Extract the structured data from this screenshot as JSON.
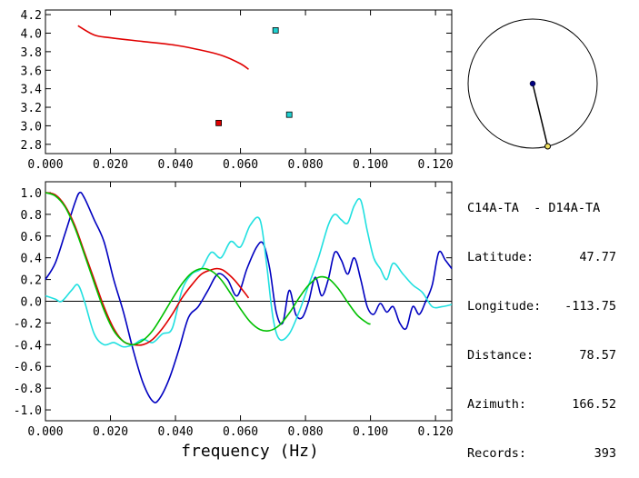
{
  "chart_data": [
    {
      "type": "line",
      "xlim": [
        0.0,
        0.125
      ],
      "ylim": [
        2.7,
        4.25
      ],
      "xticks": [
        0.0,
        0.02,
        0.04,
        0.06,
        0.08,
        0.1,
        0.12
      ],
      "xtick_labels": [
        "0.000",
        "0.020",
        "0.040",
        "0.060",
        "0.080",
        "0.100",
        "0.120"
      ],
      "yticks": [
        2.8,
        3.0,
        3.2,
        3.4,
        3.6,
        3.8,
        4.0,
        4.2
      ],
      "ytick_labels": [
        "2.8",
        "3.0",
        "3.2",
        "3.4",
        "3.6",
        "3.8",
        "4.0",
        "4.2"
      ],
      "series": [
        {
          "color": "#e00000",
          "kind": "line",
          "x": [
            0.01,
            0.015,
            0.02,
            0.03,
            0.04,
            0.05,
            0.055,
            0.06,
            0.0625
          ],
          "y": [
            4.08,
            3.98,
            3.95,
            3.91,
            3.87,
            3.8,
            3.75,
            3.67,
            3.61
          ]
        },
        {
          "color": "#e00000",
          "kind": "marker",
          "x": [
            0.0533
          ],
          "y": [
            3.03
          ]
        },
        {
          "color": "#20d0d0",
          "kind": "marker",
          "x": [
            0.0708,
            0.075
          ],
          "y": [
            4.03,
            3.12
          ]
        }
      ]
    },
    {
      "type": "line",
      "xlim": [
        0.0,
        0.125
      ],
      "ylim": [
        -1.1,
        1.1
      ],
      "xticks": [
        0.0,
        0.02,
        0.04,
        0.06,
        0.08,
        0.1,
        0.12
      ],
      "xtick_labels": [
        "0.000",
        "0.020",
        "0.040",
        "0.060",
        "0.080",
        "0.100",
        "0.120"
      ],
      "yticks": [
        -1.0,
        -0.8,
        -0.6,
        -0.4,
        -0.2,
        0.0,
        0.2,
        0.4,
        0.6,
        0.8,
        1.0
      ],
      "ytick_labels": [
        "-1.0",
        "-0.8",
        "-0.6",
        "-0.4",
        "-0.2",
        "0.0",
        "0.2",
        "0.4",
        "0.6",
        "0.8",
        "1.0"
      ],
      "xlabel": "frequency (Hz)",
      "zero_line": true,
      "series": [
        {
          "color": "#0000c0",
          "x": [
            0.0,
            0.003,
            0.006,
            0.009,
            0.0105,
            0.012,
            0.015,
            0.018,
            0.021,
            0.024,
            0.027,
            0.03,
            0.033,
            0.035,
            0.038,
            0.041,
            0.044,
            0.047,
            0.05,
            0.053,
            0.056,
            0.059,
            0.062,
            0.065,
            0.067,
            0.069,
            0.071,
            0.073,
            0.075,
            0.077,
            0.079,
            0.081,
            0.083,
            0.085,
            0.087,
            0.089,
            0.091,
            0.093,
            0.095,
            0.097,
            0.099,
            0.101,
            0.103,
            0.105,
            0.107,
            0.109,
            0.111,
            0.113,
            0.115,
            0.117,
            0.119,
            0.121,
            0.123,
            0.125
          ],
          "y": [
            0.2,
            0.35,
            0.62,
            0.9,
            1.0,
            0.95,
            0.75,
            0.55,
            0.2,
            -0.1,
            -0.45,
            -0.75,
            -0.92,
            -0.9,
            -0.72,
            -0.45,
            -0.15,
            -0.05,
            0.1,
            0.25,
            0.2,
            0.05,
            0.3,
            0.5,
            0.53,
            0.3,
            -0.1,
            -0.2,
            0.1,
            -0.12,
            -0.15,
            0.0,
            0.22,
            0.05,
            0.2,
            0.45,
            0.38,
            0.25,
            0.4,
            0.2,
            -0.05,
            -0.12,
            -0.02,
            -0.1,
            -0.05,
            -0.2,
            -0.25,
            -0.05,
            -0.12,
            0.0,
            0.15,
            0.45,
            0.38,
            0.3
          ]
        },
        {
          "color": "#20e0e0",
          "x": [
            0.0,
            0.003,
            0.005,
            0.008,
            0.01,
            0.012,
            0.015,
            0.018,
            0.021,
            0.024,
            0.027,
            0.03,
            0.033,
            0.036,
            0.039,
            0.042,
            0.045,
            0.048,
            0.051,
            0.054,
            0.057,
            0.06,
            0.063,
            0.066,
            0.068,
            0.07,
            0.072,
            0.075,
            0.078,
            0.081,
            0.084,
            0.087,
            0.089,
            0.091,
            0.093,
            0.095,
            0.097,
            0.099,
            0.101,
            0.103,
            0.105,
            0.107,
            0.11,
            0.113,
            0.116,
            0.119,
            0.122,
            0.125
          ],
          "y": [
            0.05,
            0.02,
            0.0,
            0.1,
            0.15,
            0.0,
            -0.3,
            -0.4,
            -0.38,
            -0.42,
            -0.4,
            -0.35,
            -0.38,
            -0.3,
            -0.25,
            0.1,
            0.25,
            0.3,
            0.45,
            0.4,
            0.55,
            0.5,
            0.7,
            0.75,
            0.35,
            -0.15,
            -0.35,
            -0.3,
            -0.1,
            0.15,
            0.4,
            0.7,
            0.8,
            0.75,
            0.72,
            0.88,
            0.93,
            0.65,
            0.4,
            0.3,
            0.2,
            0.35,
            0.25,
            0.15,
            0.08,
            -0.05,
            -0.05,
            -0.03
          ]
        },
        {
          "color": "#e00000",
          "x": [
            0.0,
            0.003,
            0.006,
            0.009,
            0.012,
            0.015,
            0.018,
            0.021,
            0.024,
            0.027,
            0.03,
            0.033,
            0.036,
            0.039,
            0.042,
            0.045,
            0.048,
            0.051,
            0.053,
            0.055,
            0.058,
            0.061,
            0.0625
          ],
          "y": [
            1.0,
            0.98,
            0.88,
            0.7,
            0.45,
            0.2,
            -0.05,
            -0.25,
            -0.37,
            -0.4,
            -0.4,
            -0.35,
            -0.25,
            -0.12,
            0.03,
            0.15,
            0.25,
            0.29,
            0.3,
            0.28,
            0.2,
            0.09,
            0.03
          ]
        },
        {
          "color": "#00c000",
          "x": [
            0.0,
            0.003,
            0.006,
            0.009,
            0.012,
            0.015,
            0.018,
            0.021,
            0.024,
            0.027,
            0.03,
            0.033,
            0.036,
            0.039,
            0.042,
            0.045,
            0.048,
            0.051,
            0.054,
            0.057,
            0.06,
            0.063,
            0.066,
            0.069,
            0.072,
            0.075,
            0.078,
            0.081,
            0.084,
            0.087,
            0.09,
            0.093,
            0.096,
            0.099,
            0.1
          ],
          "y": [
            1.0,
            0.97,
            0.87,
            0.68,
            0.43,
            0.17,
            -0.08,
            -0.27,
            -0.37,
            -0.4,
            -0.36,
            -0.27,
            -0.13,
            0.02,
            0.16,
            0.26,
            0.3,
            0.28,
            0.2,
            0.07,
            -0.07,
            -0.19,
            -0.26,
            -0.27,
            -0.22,
            -0.11,
            0.03,
            0.15,
            0.22,
            0.21,
            0.12,
            -0.01,
            -0.13,
            -0.2,
            -0.21
          ]
        }
      ]
    }
  ],
  "azimuth_plot": {
    "azimuth_deg": 166.52,
    "station_color": "#000080",
    "event_color": "#f0e060"
  },
  "info": {
    "station_pair": "C14A-TA  - D14A-TA",
    "rows": [
      {
        "label": "Latitude:",
        "value": "47.77"
      },
      {
        "label": "Longitude:",
        "value": "-113.75"
      },
      {
        "label": "Distance:",
        "value": "78.57"
      },
      {
        "label": "Azimuth:",
        "value": "166.52"
      },
      {
        "label": "Records:",
        "value": "393"
      }
    ]
  }
}
